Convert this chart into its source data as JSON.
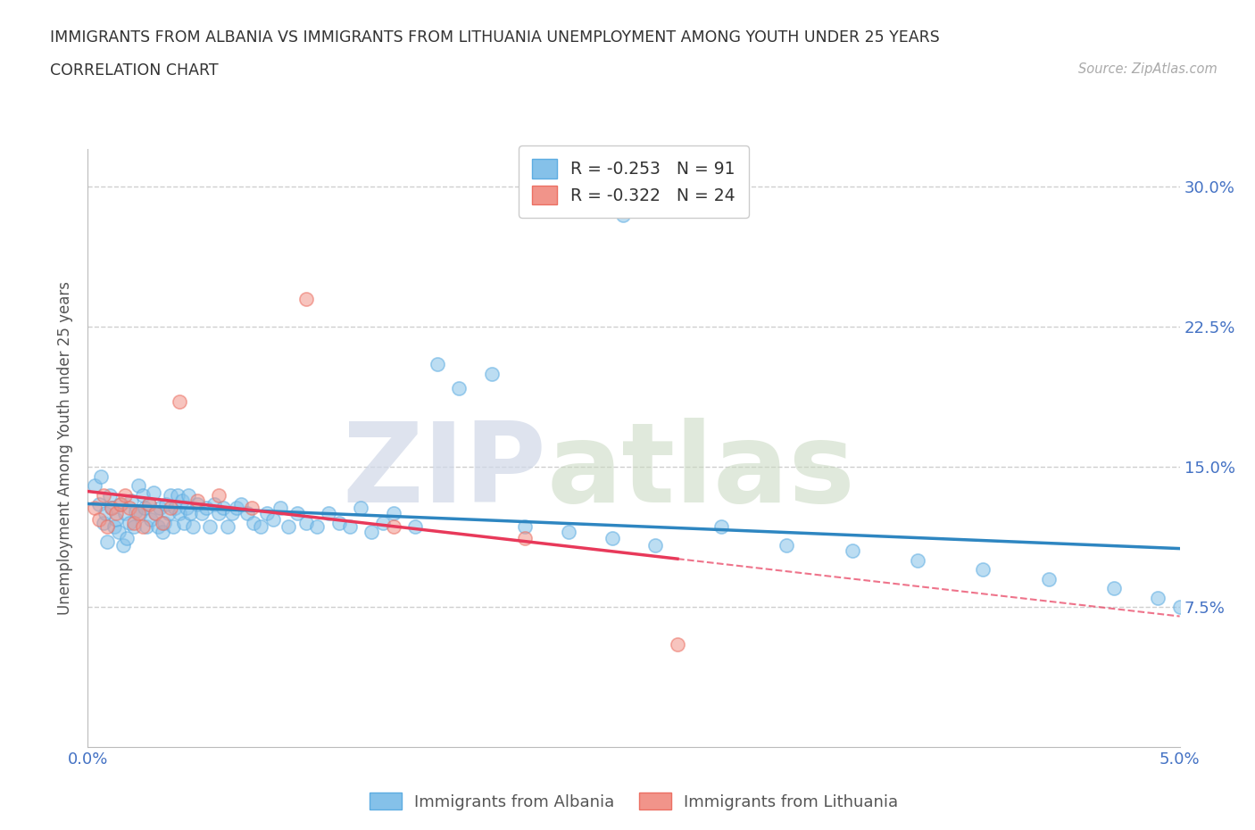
{
  "title_line1": "IMMIGRANTS FROM ALBANIA VS IMMIGRANTS FROM LITHUANIA UNEMPLOYMENT AMONG YOUTH UNDER 25 YEARS",
  "title_line2": "CORRELATION CHART",
  "source": "Source: ZipAtlas.com",
  "ylabel": "Unemployment Among Youth under 25 years",
  "xlim": [
    0.0,
    0.05
  ],
  "ylim": [
    0.0,
    0.32
  ],
  "xticks": [
    0.0,
    0.01,
    0.02,
    0.03,
    0.04,
    0.05
  ],
  "xticklabels": [
    "0.0%",
    "",
    "",
    "",
    "",
    "5.0%"
  ],
  "yticks": [
    0.0,
    0.075,
    0.15,
    0.225,
    0.3
  ],
  "yticklabels": [
    "",
    "7.5%",
    "15.0%",
    "22.5%",
    "30.0%"
  ],
  "albania_color": "#85C1E9",
  "albania_edge_color": "#5DADE2",
  "lithuania_color": "#F1948A",
  "lithuania_edge_color": "#EC7063",
  "albania_line_color": "#2E86C1",
  "lithuania_line_color": "#E8395A",
  "albania_R": -0.253,
  "albania_N": 91,
  "lithuania_R": -0.322,
  "lithuania_N": 24,
  "watermark_zip": "ZIP",
  "watermark_atlas": "atlas",
  "legend_label_albania": "Immigrants from Albania",
  "legend_label_lithuania": "Immigrants from Lithuania",
  "albania_scatter_x": [
    0.0003,
    0.0005,
    0.0006,
    0.0007,
    0.0008,
    0.0009,
    0.001,
    0.0011,
    0.0012,
    0.0013,
    0.0014,
    0.0015,
    0.0016,
    0.0017,
    0.0018,
    0.0019,
    0.002,
    0.0021,
    0.0022,
    0.0023,
    0.0024,
    0.0025,
    0.0026,
    0.0027,
    0.0028,
    0.0029,
    0.003,
    0.0031,
    0.0032,
    0.0033,
    0.0034,
    0.0035,
    0.0036,
    0.0037,
    0.0038,
    0.0039,
    0.004,
    0.0041,
    0.0042,
    0.0043,
    0.0044,
    0.0045,
    0.0046,
    0.0047,
    0.0048,
    0.005,
    0.0052,
    0.0054,
    0.0056,
    0.0058,
    0.006,
    0.0062,
    0.0064,
    0.0066,
    0.0068,
    0.007,
    0.0073,
    0.0076,
    0.0079,
    0.0082,
    0.0085,
    0.0088,
    0.0092,
    0.0096,
    0.01,
    0.0105,
    0.011,
    0.0115,
    0.012,
    0.0125,
    0.013,
    0.0135,
    0.014,
    0.015,
    0.016,
    0.017,
    0.0185,
    0.02,
    0.022,
    0.024,
    0.026,
    0.029,
    0.032,
    0.035,
    0.038,
    0.041,
    0.044,
    0.047,
    0.049,
    0.05,
    0.0245
  ],
  "albania_scatter_y": [
    0.14,
    0.13,
    0.145,
    0.12,
    0.125,
    0.11,
    0.135,
    0.128,
    0.118,
    0.122,
    0.115,
    0.13,
    0.108,
    0.125,
    0.112,
    0.12,
    0.132,
    0.118,
    0.126,
    0.14,
    0.125,
    0.135,
    0.128,
    0.118,
    0.13,
    0.122,
    0.136,
    0.125,
    0.118,
    0.128,
    0.115,
    0.12,
    0.13,
    0.125,
    0.135,
    0.118,
    0.128,
    0.135,
    0.125,
    0.132,
    0.12,
    0.128,
    0.135,
    0.125,
    0.118,
    0.13,
    0.125,
    0.128,
    0.118,
    0.13,
    0.125,
    0.128,
    0.118,
    0.125,
    0.128,
    0.13,
    0.125,
    0.12,
    0.118,
    0.125,
    0.122,
    0.128,
    0.118,
    0.125,
    0.12,
    0.118,
    0.125,
    0.12,
    0.118,
    0.128,
    0.115,
    0.12,
    0.125,
    0.118,
    0.205,
    0.192,
    0.2,
    0.118,
    0.115,
    0.112,
    0.108,
    0.118,
    0.108,
    0.105,
    0.1,
    0.095,
    0.09,
    0.085,
    0.08,
    0.075,
    0.285
  ],
  "lithuania_scatter_x": [
    0.0003,
    0.0005,
    0.0007,
    0.0009,
    0.0011,
    0.0013,
    0.0015,
    0.0017,
    0.0019,
    0.0021,
    0.0023,
    0.0025,
    0.0028,
    0.0031,
    0.0034,
    0.0038,
    0.0042,
    0.005,
    0.006,
    0.0075,
    0.01,
    0.014,
    0.02,
    0.027
  ],
  "lithuania_scatter_y": [
    0.128,
    0.122,
    0.135,
    0.118,
    0.128,
    0.125,
    0.13,
    0.135,
    0.128,
    0.12,
    0.125,
    0.118,
    0.13,
    0.125,
    0.12,
    0.128,
    0.185,
    0.132,
    0.135,
    0.128,
    0.24,
    0.118,
    0.112,
    0.055
  ],
  "background_color": "#FFFFFF",
  "grid_color": "#BBBBBB",
  "axis_color": "#BBBBBB"
}
